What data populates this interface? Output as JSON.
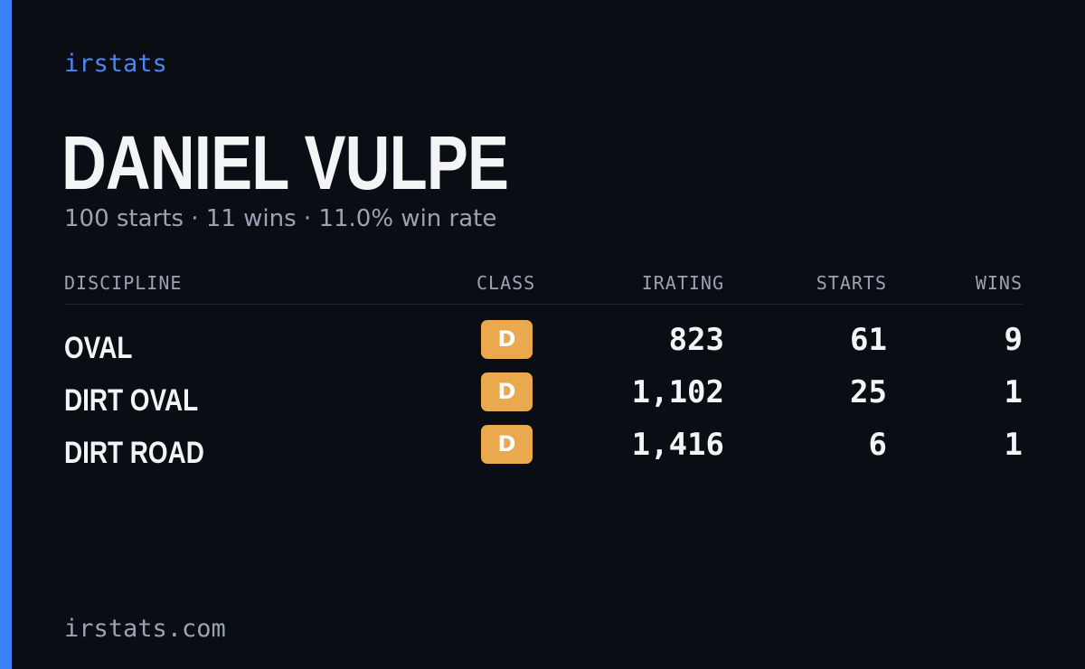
{
  "brand": "irstats",
  "player": {
    "name": "DANIEL VULPE",
    "summary": "100 starts · 11 wins · 11.0% win rate"
  },
  "table": {
    "headers": {
      "discipline": "DISCIPLINE",
      "class": "CLASS",
      "irating": "IRATING",
      "starts": "STARTS",
      "wins": "WINS"
    },
    "rows": [
      {
        "discipline": "OVAL",
        "class": "D",
        "irating": "823",
        "starts": "61",
        "wins": "9"
      },
      {
        "discipline": "DIRT OVAL",
        "class": "D",
        "irating": "1,102",
        "starts": "25",
        "wins": "1"
      },
      {
        "discipline": "DIRT ROAD",
        "class": "D",
        "irating": "1,416",
        "starts": "6",
        "wins": "1"
      }
    ]
  },
  "footer": "irstats.com",
  "colors": {
    "background": "#0a0d14",
    "accent": "#3b82f6",
    "brand_text": "#4a86f2",
    "class_badge": "#e9a94c",
    "primary_text": "#f3f4f6",
    "muted_text": "#9aa3b2"
  }
}
